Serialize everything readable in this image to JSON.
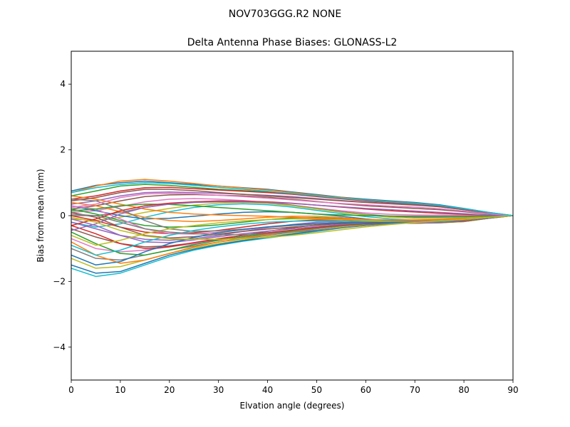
{
  "chart_data": {
    "type": "line",
    "suptitle": "NOV703GGG.R2    NONE",
    "title": "Delta Antenna Phase Biases: GLONASS-L2",
    "xlabel": "Elvation angle (degrees)",
    "ylabel": "Bias from mean (mm)",
    "xlim": [
      0,
      90
    ],
    "ylim": [
      -5,
      5
    ],
    "xticks": [
      0,
      10,
      20,
      30,
      40,
      50,
      60,
      70,
      80,
      90
    ],
    "yticks": [
      -4,
      -2,
      0,
      2,
      4
    ],
    "ytick_labels": [
      "−4",
      "−2",
      "0",
      "2",
      "4"
    ],
    "grid": false,
    "legend": "none",
    "colors": [
      "#1f77b4",
      "#ff7f0e",
      "#2ca02c",
      "#d62728",
      "#9467bd",
      "#8c564b",
      "#e377c2",
      "#7f7f7f",
      "#bcbd22",
      "#17becf"
    ],
    "x": [
      0,
      5,
      10,
      15,
      20,
      25,
      30,
      35,
      40,
      45,
      50,
      55,
      60,
      65,
      70,
      75,
      80,
      85,
      90
    ],
    "series": [
      {
        "values": [
          0.75,
          0.92,
          1.0,
          1.05,
          1.0,
          0.95,
          0.9,
          0.85,
          0.8,
          0.72,
          0.64,
          0.56,
          0.5,
          0.45,
          0.4,
          0.33,
          0.22,
          0.1,
          0.0
        ]
      },
      {
        "values": [
          0.7,
          0.9,
          1.05,
          1.1,
          1.05,
          0.98,
          0.9,
          0.84,
          0.78,
          0.7,
          0.62,
          0.55,
          0.48,
          0.43,
          0.38,
          0.31,
          0.2,
          0.09,
          0.0
        ]
      },
      {
        "values": [
          0.6,
          0.75,
          0.9,
          0.95,
          0.92,
          0.86,
          0.8,
          0.76,
          0.72,
          0.67,
          0.6,
          0.53,
          0.47,
          0.42,
          0.37,
          0.3,
          0.2,
          0.09,
          0.0
        ]
      },
      {
        "values": [
          0.5,
          0.6,
          0.75,
          0.85,
          0.86,
          0.82,
          0.78,
          0.74,
          0.7,
          0.65,
          0.58,
          0.51,
          0.45,
          0.4,
          0.35,
          0.29,
          0.19,
          0.09,
          0.0
        ]
      },
      {
        "values": [
          0.35,
          0.45,
          0.6,
          0.7,
          0.72,
          0.7,
          0.68,
          0.65,
          0.62,
          0.58,
          0.52,
          0.46,
          0.41,
          0.37,
          0.33,
          0.27,
          0.18,
          0.08,
          0.0
        ]
      },
      {
        "values": [
          0.2,
          0.3,
          0.45,
          0.58,
          0.63,
          0.64,
          0.62,
          0.6,
          0.56,
          0.5,
          0.43,
          0.36,
          0.3,
          0.26,
          0.22,
          0.18,
          0.12,
          0.05,
          0.0
        ]
      },
      {
        "values": [
          0.1,
          0.15,
          0.28,
          0.42,
          0.5,
          0.52,
          0.5,
          0.46,
          0.4,
          0.32,
          0.23,
          0.15,
          0.08,
          0.04,
          0.02,
          0.02,
          0.01,
          0.0,
          0.0
        ]
      },
      {
        "values": [
          0.0,
          0.0,
          0.1,
          0.25,
          0.36,
          0.42,
          0.45,
          0.44,
          0.4,
          0.32,
          0.22,
          0.12,
          0.04,
          -0.02,
          -0.05,
          -0.05,
          -0.04,
          -0.02,
          0.0
        ]
      },
      {
        "values": [
          -0.1,
          -0.15,
          -0.05,
          0.1,
          0.22,
          0.32,
          0.38,
          0.4,
          0.37,
          0.3,
          0.2,
          0.1,
          0.02,
          -0.05,
          -0.08,
          -0.09,
          -0.07,
          -0.03,
          0.0
        ]
      },
      {
        "values": [
          -0.2,
          -0.35,
          -0.25,
          -0.05,
          0.12,
          0.25,
          0.33,
          0.36,
          0.33,
          0.26,
          0.16,
          0.06,
          -0.03,
          -0.1,
          -0.14,
          -0.14,
          -0.11,
          -0.05,
          0.0
        ]
      },
      {
        "values": [
          0.3,
          0.15,
          0.0,
          -0.1,
          -0.08,
          -0.02,
          0.05,
          0.1,
          0.12,
          0.1,
          0.05,
          -0.02,
          -0.1,
          -0.16,
          -0.2,
          -0.21,
          -0.18,
          -0.08,
          0.0
        ]
      },
      {
        "values": [
          0.4,
          0.3,
          0.12,
          -0.05,
          -0.15,
          -0.18,
          -0.15,
          -0.1,
          -0.05,
          -0.02,
          -0.02,
          -0.06,
          -0.12,
          -0.18,
          -0.22,
          -0.22,
          -0.18,
          -0.08,
          0.0
        ]
      },
      {
        "values": [
          0.2,
          0.05,
          -0.15,
          -0.3,
          -0.35,
          -0.33,
          -0.28,
          -0.2,
          -0.12,
          -0.07,
          -0.06,
          -0.09,
          -0.15,
          -0.2,
          -0.23,
          -0.22,
          -0.17,
          -0.08,
          0.0
        ]
      },
      {
        "values": [
          0.0,
          -0.15,
          -0.35,
          -0.5,
          -0.55,
          -0.52,
          -0.45,
          -0.35,
          -0.25,
          -0.17,
          -0.13,
          -0.13,
          -0.17,
          -0.21,
          -0.23,
          -0.21,
          -0.16,
          -0.07,
          0.0
        ]
      },
      {
        "values": [
          -0.2,
          -0.4,
          -0.6,
          -0.72,
          -0.75,
          -0.7,
          -0.6,
          -0.48,
          -0.37,
          -0.27,
          -0.2,
          -0.18,
          -0.2,
          -0.22,
          -0.23,
          -0.21,
          -0.15,
          -0.07,
          0.0
        ]
      },
      {
        "values": [
          -0.4,
          -0.65,
          -0.85,
          -0.95,
          -0.92,
          -0.83,
          -0.72,
          -0.6,
          -0.48,
          -0.37,
          -0.28,
          -0.23,
          -0.22,
          -0.23,
          -0.23,
          -0.2,
          -0.14,
          -0.06,
          0.0
        ]
      },
      {
        "values": [
          -0.7,
          -1.0,
          -1.1,
          -1.05,
          -0.95,
          -0.85,
          -0.75,
          -0.65,
          -0.55,
          -0.45,
          -0.35,
          -0.28,
          -0.24,
          -0.23,
          -0.22,
          -0.19,
          -0.13,
          -0.06,
          0.0
        ]
      },
      {
        "values": [
          -1.0,
          -1.3,
          -1.35,
          -1.2,
          -1.05,
          -0.92,
          -0.8,
          -0.7,
          -0.6,
          -0.5,
          -0.4,
          -0.32,
          -0.26,
          -0.23,
          -0.21,
          -0.18,
          -0.12,
          -0.05,
          0.0
        ]
      },
      {
        "values": [
          -1.3,
          -1.6,
          -1.55,
          -1.35,
          -1.15,
          -0.98,
          -0.85,
          -0.74,
          -0.64,
          -0.54,
          -0.44,
          -0.35,
          -0.28,
          -0.23,
          -0.2,
          -0.17,
          -0.12,
          -0.05,
          0.0
        ]
      },
      {
        "values": [
          -1.6,
          -1.85,
          -1.75,
          -1.5,
          -1.25,
          -1.05,
          -0.9,
          -0.78,
          -0.68,
          -0.58,
          -0.48,
          -0.38,
          -0.3,
          -0.24,
          -0.2,
          -0.16,
          -0.11,
          -0.05,
          0.0
        ]
      },
      {
        "values": [
          -1.5,
          -1.75,
          -1.7,
          -1.45,
          -1.2,
          -1.02,
          -0.88,
          -0.76,
          -0.66,
          -0.56,
          -0.46,
          -0.37,
          -0.29,
          -0.24,
          -0.2,
          -0.17,
          -0.11,
          -0.05,
          0.0
        ]
      },
      {
        "values": [
          -0.8,
          -1.2,
          -1.45,
          -1.35,
          -1.15,
          -0.95,
          -0.8,
          -0.68,
          -0.58,
          -0.48,
          -0.38,
          -0.3,
          -0.25,
          -0.22,
          -0.2,
          -0.17,
          -0.12,
          -0.05,
          0.0
        ]
      },
      {
        "values": [
          -0.5,
          -0.85,
          -1.15,
          -1.2,
          -1.05,
          -0.88,
          -0.75,
          -0.64,
          -0.55,
          -0.46,
          -0.37,
          -0.3,
          -0.25,
          -0.22,
          -0.2,
          -0.17,
          -0.12,
          -0.05,
          0.0
        ]
      },
      {
        "values": [
          -0.3,
          -0.55,
          -0.85,
          -1.0,
          -0.95,
          -0.82,
          -0.7,
          -0.6,
          -0.52,
          -0.44,
          -0.36,
          -0.29,
          -0.24,
          -0.21,
          -0.19,
          -0.16,
          -0.11,
          -0.05,
          0.0
        ]
      },
      {
        "values": [
          -0.1,
          -0.3,
          -0.6,
          -0.8,
          -0.82,
          -0.74,
          -0.64,
          -0.55,
          -0.47,
          -0.4,
          -0.33,
          -0.27,
          -0.22,
          -0.2,
          -0.18,
          -0.15,
          -0.1,
          -0.05,
          0.0
        ]
      },
      {
        "values": [
          0.1,
          -0.05,
          -0.35,
          -0.6,
          -0.68,
          -0.64,
          -0.56,
          -0.48,
          -0.41,
          -0.35,
          -0.29,
          -0.24,
          -0.2,
          -0.18,
          -0.16,
          -0.14,
          -0.1,
          -0.04,
          0.0
        ]
      },
      {
        "values": [
          0.3,
          0.2,
          -0.1,
          -0.4,
          -0.55,
          -0.56,
          -0.5,
          -0.43,
          -0.36,
          -0.3,
          -0.25,
          -0.21,
          -0.18,
          -0.16,
          -0.15,
          -0.13,
          -0.09,
          -0.04,
          0.0
        ]
      },
      {
        "values": [
          0.5,
          0.45,
          0.2,
          -0.15,
          -0.4,
          -0.48,
          -0.46,
          -0.41,
          -0.35,
          -0.3,
          -0.25,
          -0.21,
          -0.18,
          -0.16,
          -0.14,
          -0.12,
          -0.09,
          -0.04,
          0.0
        ]
      },
      {
        "values": [
          -0.6,
          -0.9,
          -0.75,
          -0.55,
          -0.4,
          -0.3,
          -0.22,
          -0.16,
          -0.12,
          -0.1,
          -0.1,
          -0.12,
          -0.15,
          -0.18,
          -0.19,
          -0.17,
          -0.12,
          -0.05,
          0.0
        ]
      },
      {
        "values": [
          -0.9,
          -1.2,
          -1.05,
          -0.8,
          -0.6,
          -0.45,
          -0.34,
          -0.26,
          -0.2,
          -0.17,
          -0.16,
          -0.17,
          -0.19,
          -0.2,
          -0.2,
          -0.18,
          -0.12,
          -0.05,
          0.0
        ]
      },
      {
        "values": [
          -1.2,
          -1.5,
          -1.4,
          -1.1,
          -0.85,
          -0.66,
          -0.52,
          -0.42,
          -0.34,
          -0.28,
          -0.24,
          -0.22,
          -0.21,
          -0.21,
          -0.2,
          -0.17,
          -0.12,
          -0.05,
          0.0
        ]
      },
      {
        "values": [
          0.6,
          0.5,
          0.35,
          0.2,
          0.1,
          0.05,
          0.02,
          0.0,
          -0.02,
          -0.05,
          -0.08,
          -0.1,
          -0.12,
          -0.13,
          -0.13,
          -0.12,
          -0.08,
          -0.04,
          0.0
        ]
      },
      {
        "values": [
          0.15,
          0.2,
          0.3,
          0.35,
          0.34,
          0.3,
          0.25,
          0.2,
          0.15,
          0.1,
          0.05,
          0.02,
          0.0,
          -0.01,
          -0.02,
          -0.02,
          -0.02,
          -0.01,
          0.0
        ]
      },
      {
        "values": [
          -0.3,
          -0.1,
          0.15,
          0.3,
          0.38,
          0.42,
          0.44,
          0.44,
          0.42,
          0.38,
          0.32,
          0.26,
          0.2,
          0.15,
          0.11,
          0.07,
          0.04,
          0.02,
          0.0
        ]
      },
      {
        "values": [
          -0.45,
          -0.25,
          0.05,
          0.25,
          0.35,
          0.4,
          0.42,
          0.42,
          0.4,
          0.37,
          0.32,
          0.27,
          0.22,
          0.18,
          0.14,
          0.1,
          0.06,
          0.02,
          0.0
        ]
      },
      {
        "values": [
          0.45,
          0.55,
          0.7,
          0.8,
          0.8,
          0.76,
          0.7,
          0.65,
          0.6,
          0.55,
          0.5,
          0.45,
          0.4,
          0.36,
          0.32,
          0.27,
          0.18,
          0.08,
          0.0
        ]
      },
      {
        "values": [
          0.25,
          0.35,
          0.55,
          0.66,
          0.68,
          0.66,
          0.62,
          0.58,
          0.53,
          0.48,
          0.42,
          0.37,
          0.33,
          0.29,
          0.26,
          0.21,
          0.14,
          0.06,
          0.0
        ]
      },
      {
        "values": [
          0.05,
          0.0,
          -0.2,
          -0.4,
          -0.5,
          -0.55,
          -0.58,
          -0.58,
          -0.55,
          -0.5,
          -0.44,
          -0.37,
          -0.3,
          -0.25,
          -0.2,
          -0.16,
          -0.11,
          -0.05,
          0.0
        ]
      },
      {
        "values": [
          -0.05,
          -0.2,
          -0.45,
          -0.62,
          -0.7,
          -0.72,
          -0.72,
          -0.7,
          -0.66,
          -0.6,
          -0.52,
          -0.43,
          -0.34,
          -0.27,
          -0.21,
          -0.16,
          -0.11,
          -0.05,
          0.0
        ]
      },
      {
        "values": [
          0.7,
          0.85,
          0.95,
          1.0,
          0.98,
          0.92,
          0.86,
          0.8,
          0.74,
          0.67,
          0.6,
          0.53,
          0.47,
          0.42,
          0.37,
          0.31,
          0.21,
          0.1,
          0.0
        ]
      }
    ]
  }
}
